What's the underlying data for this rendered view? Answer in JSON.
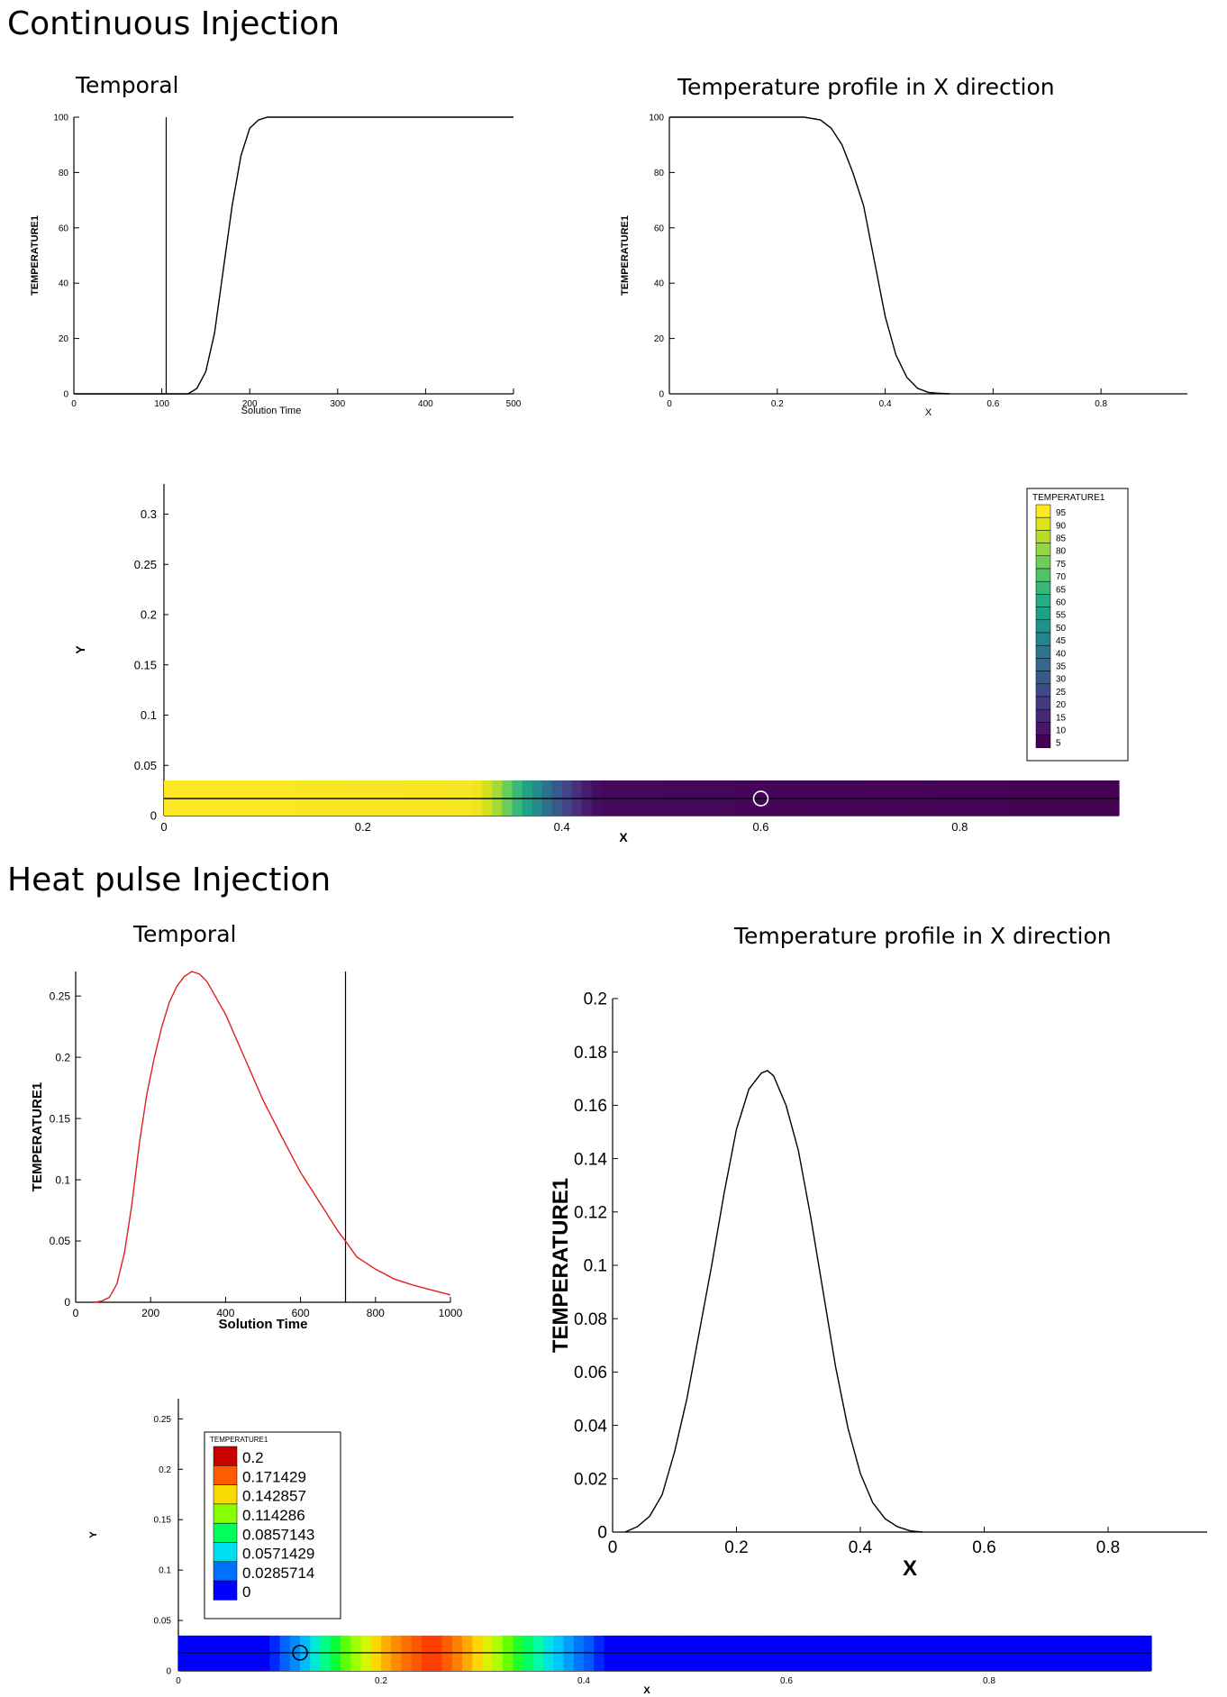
{
  "sections": [
    {
      "title": "Continuous Injection"
    },
    {
      "title": "Heat pulse Injection"
    }
  ],
  "colors": {
    "viridis": [
      "#440154",
      "#48186a",
      "#472d7b",
      "#424086",
      "#3b528b",
      "#33638d",
      "#2c728e",
      "#26828e",
      "#21918c",
      "#1fa088",
      "#28ae80",
      "#3fbc73",
      "#5ec962",
      "#84d44b",
      "#addc30",
      "#d8e219",
      "#fde725"
    ],
    "jet": [
      "#0000ff",
      "#0047ff",
      "#0090ff",
      "#00d8ff",
      "#00ff9c",
      "#00ff40",
      "#6cff00",
      "#c8ff00",
      "#ffd400",
      "#ff8000",
      "#ff2a00",
      "#c80000"
    ]
  },
  "chart_data": [
    {
      "id": "ci-temporal",
      "type": "line",
      "title": "Temporal",
      "xlabel": "Solution Time",
      "ylabel": "TEMPERATURE1",
      "xlim": [
        0,
        500
      ],
      "ylim": [
        0,
        100
      ],
      "xticks": [
        "0",
        "100",
        "200",
        "300",
        "400",
        "500"
      ],
      "yticks": [
        "0",
        "20",
        "40",
        "60",
        "80",
        "100"
      ],
      "vertical_marker": 105,
      "series": [
        {
          "color": "#000000",
          "x": [
            0,
            130,
            140,
            150,
            160,
            170,
            180,
            190,
            200,
            210,
            220,
            500
          ],
          "y": [
            0,
            0,
            2,
            8,
            22,
            45,
            68,
            86,
            96,
            99,
            100,
            100
          ]
        }
      ]
    },
    {
      "id": "ci-profile",
      "type": "line",
      "title": "Temperature profile in X direction",
      "xlabel": "X",
      "ylabel": "TEMPERATURE1",
      "xlim": [
        0,
        0.96
      ],
      "ylim": [
        0,
        100
      ],
      "xticks": [
        "0",
        "0.2",
        "0.4",
        "0.6",
        "0.8"
      ],
      "yticks": [
        "0",
        "20",
        "40",
        "60",
        "80",
        "100"
      ],
      "series": [
        {
          "color": "#000000",
          "x": [
            0,
            0.25,
            0.28,
            0.3,
            0.32,
            0.34,
            0.36,
            0.38,
            0.4,
            0.42,
            0.44,
            0.46,
            0.48,
            0.5,
            0.52
          ],
          "y": [
            100,
            100,
            99,
            96,
            90,
            80,
            68,
            48,
            28,
            14,
            6,
            2,
            0.5,
            0.2,
            0
          ]
        }
      ]
    },
    {
      "id": "ci-contour",
      "type": "heatmap",
      "xlabel": "X",
      "ylabel": "Y",
      "xlim": [
        0,
        0.96
      ],
      "ylim": [
        0,
        0.33
      ],
      "xticks": [
        "0",
        "0.2",
        "0.4",
        "0.6",
        "0.8"
      ],
      "yticks": [
        "0",
        "0.05",
        "0.1",
        "0.15",
        "0.2",
        "0.25",
        "0.3"
      ],
      "strip_height": 0.035,
      "centerline_y": 0.017,
      "probe": [
        0.6,
        0.017
      ],
      "legend": {
        "title": "TEMPERATURE1",
        "levels": [
          "95",
          "90",
          "85",
          "80",
          "75",
          "70",
          "65",
          "60",
          "55",
          "50",
          "45",
          "40",
          "35",
          "30",
          "25",
          "20",
          "15",
          "10",
          "5"
        ]
      },
      "profile_x": [
        0,
        0.31,
        0.32,
        0.33,
        0.34,
        0.35,
        0.36,
        0.37,
        0.38,
        0.39,
        0.4,
        0.41,
        0.42,
        0.43,
        0.44,
        0.96
      ],
      "profile_v": [
        100,
        99,
        96,
        90,
        82,
        72,
        62,
        52,
        42,
        32,
        24,
        16,
        10,
        5,
        2,
        0
      ]
    },
    {
      "id": "hp-temporal",
      "type": "line",
      "title": "Temporal",
      "xlabel": "Solution Time",
      "ylabel": "TEMPERATURE1",
      "xlim": [
        0,
        1000
      ],
      "ylim": [
        0,
        0.27
      ],
      "xticks": [
        "0",
        "200",
        "400",
        "600",
        "800",
        "1000"
      ],
      "yticks": [
        "0",
        "0.05",
        "0.1",
        "0.15",
        "0.2",
        "0.25"
      ],
      "vertical_marker": 720,
      "series": [
        {
          "color": "#e02020",
          "x": [
            50,
            70,
            90,
            110,
            130,
            150,
            170,
            190,
            210,
            230,
            250,
            270,
            290,
            310,
            330,
            350,
            400,
            450,
            500,
            550,
            600,
            650,
            700,
            720,
            750,
            800,
            850,
            900,
            950,
            1000
          ],
          "y": [
            0,
            0.001,
            0.004,
            0.015,
            0.04,
            0.08,
            0.13,
            0.17,
            0.2,
            0.225,
            0.245,
            0.258,
            0.266,
            0.27,
            0.268,
            0.262,
            0.235,
            0.2,
            0.165,
            0.135,
            0.106,
            0.082,
            0.058,
            0.05,
            0.037,
            0.027,
            0.019,
            0.014,
            0.01,
            0.006
          ]
        }
      ]
    },
    {
      "id": "hp-profile",
      "type": "line",
      "title": "Temperature profile in X direction",
      "xlabel": "X",
      "ylabel": "TEMPERATURE1",
      "xlim": [
        0,
        0.96
      ],
      "ylim": [
        0,
        0.2
      ],
      "xticks": [
        "0",
        "0.2",
        "0.4",
        "0.6",
        "0.8"
      ],
      "yticks": [
        "0",
        "0.02",
        "0.04",
        "0.06",
        "0.08",
        "0.1",
        "0.12",
        "0.14",
        "0.16",
        "0.18",
        "0.2"
      ],
      "series": [
        {
          "color": "#000000",
          "x": [
            0.02,
            0.04,
            0.06,
            0.08,
            0.1,
            0.12,
            0.14,
            0.16,
            0.18,
            0.2,
            0.22,
            0.24,
            0.25,
            0.26,
            0.28,
            0.3,
            0.32,
            0.34,
            0.36,
            0.38,
            0.4,
            0.42,
            0.44,
            0.46,
            0.48,
            0.5
          ],
          "y": [
            0,
            0.002,
            0.006,
            0.014,
            0.03,
            0.05,
            0.075,
            0.1,
            0.127,
            0.151,
            0.166,
            0.172,
            0.173,
            0.171,
            0.16,
            0.143,
            0.118,
            0.09,
            0.062,
            0.039,
            0.022,
            0.011,
            0.005,
            0.002,
            0.0005,
            0
          ]
        }
      ]
    },
    {
      "id": "hp-contour",
      "type": "heatmap",
      "xlabel": "X",
      "ylabel": "Y",
      "xlim": [
        0,
        0.96
      ],
      "ylim": [
        0,
        0.27
      ],
      "xticks": [
        "0",
        "0.2",
        "0.4",
        "0.6",
        "0.8"
      ],
      "yticks": [
        "0",
        "0.05",
        "0.1",
        "0.15",
        "0.2",
        "0.25"
      ],
      "strip_height": 0.035,
      "centerline_y": 0.018,
      "probe": [
        0.12,
        0.018
      ],
      "legend": {
        "title": "TEMPERATURE1",
        "levels": [
          "0.2",
          "0.171429",
          "0.142857",
          "0.114286",
          "0.0857143",
          "0.0571429",
          "0.0285714",
          "0"
        ]
      },
      "profile_x": [
        0,
        0.09,
        0.1,
        0.12,
        0.14,
        0.16,
        0.18,
        0.2,
        0.22,
        0.24,
        0.25,
        0.26,
        0.28,
        0.3,
        0.32,
        0.34,
        0.36,
        0.38,
        0.4,
        0.41,
        0.42,
        0.96
      ],
      "profile_v": [
        0,
        0,
        0.02,
        0.04,
        0.07,
        0.1,
        0.125,
        0.15,
        0.165,
        0.175,
        0.18,
        0.175,
        0.16,
        0.14,
        0.115,
        0.09,
        0.065,
        0.045,
        0.025,
        0.02,
        0,
        0
      ]
    }
  ]
}
